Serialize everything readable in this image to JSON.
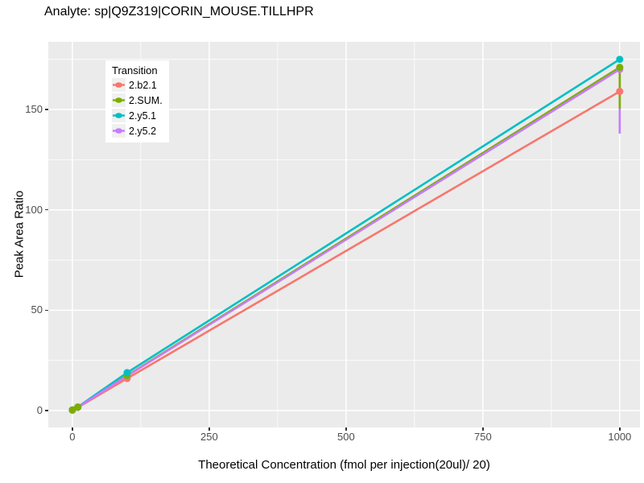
{
  "title": "Analyte: sp|Q9Z319|CORIN_MOUSE.TILLHPR",
  "colors": {
    "panel_bg": "#EBEBEB",
    "grid": "#FFFFFF",
    "tick_mark": "#333333",
    "tick_label": "#4D4D4D",
    "legend_key_bg": "#F0F0F0",
    "page_bg": "#FFFFFF",
    "text": "#000000"
  },
  "chart_data": {
    "type": "line",
    "title": "Analyte: sp|Q9Z319|CORIN_MOUSE.TILLHPR",
    "xlabel": "Theoretical Concentration (fmol per injection(20ul)/ 20)",
    "ylabel": "Peak Area Ratio",
    "xlim": [
      -44,
      1037
    ],
    "ylim": [
      -8.4,
      183.7
    ],
    "x_ticks": [
      0,
      250,
      500,
      750,
      1000
    ],
    "x_tick_labels": [
      "0",
      "250",
      "500",
      "750",
      "1000"
    ],
    "x_minor_ticks": [
      125,
      375,
      625,
      875
    ],
    "y_ticks": [
      0,
      50,
      100,
      150
    ],
    "y_tick_labels": [
      "0",
      "50",
      "100",
      "150"
    ],
    "y_minor_ticks": [
      25,
      75,
      125,
      175
    ],
    "grid": true,
    "legend": {
      "title": "Transition",
      "position": "top-left-inset",
      "entries": [
        {
          "label": "2.b2.1",
          "color": "#F8766D"
        },
        {
          "label": "2.SUM.",
          "color": "#7CAE00"
        },
        {
          "label": "2.y5.1",
          "color": "#00BFC4"
        },
        {
          "label": "2.y5.2",
          "color": "#C77CFF"
        }
      ]
    },
    "series": [
      {
        "name": "2.b2.1",
        "color": "#F8766D",
        "x": [
          0,
          10,
          100,
          1000
        ],
        "y": [
          0.2,
          1.6,
          16,
          159
        ]
      },
      {
        "name": "2.SUM.",
        "color": "#7CAE00",
        "x": [
          0,
          10,
          100,
          1000
        ],
        "y": [
          0.3,
          1.8,
          17.5,
          171
        ],
        "error_bar": {
          "x": 1000,
          "top": 171,
          "bottom": 150.5
        }
      },
      {
        "name": "2.y5.1",
        "color": "#00BFC4",
        "x": [
          0,
          10,
          100,
          1000
        ],
        "y": [
          0.3,
          1.8,
          18.9,
          175
        ]
      },
      {
        "name": "2.y5.2",
        "color": "#C77CFF",
        "x": [
          0,
          10,
          100,
          1000
        ],
        "y": [
          0.3,
          1.7,
          17.3,
          170
        ],
        "error_bar": {
          "x": 1000,
          "top": 170,
          "bottom": 138
        }
      }
    ],
    "line_draw_order": [
      0,
      1,
      2,
      3
    ],
    "errorbar_draw_order": [
      3,
      1
    ],
    "point_draw_order": [
      [
        0,
        0
      ],
      [
        0,
        1
      ],
      [
        0,
        2
      ],
      [
        0,
        3
      ],
      [
        3,
        0
      ],
      [
        3,
        1
      ],
      [
        3,
        2
      ],
      [
        2,
        0
      ],
      [
        2,
        1
      ],
      [
        1,
        0
      ],
      [
        1,
        1
      ],
      [
        1,
        2
      ],
      [
        2,
        2
      ],
      [
        3,
        3
      ],
      [
        1,
        3
      ],
      [
        2,
        3
      ]
    ],
    "line_width": 2.6,
    "point_radius": 4.5
  }
}
